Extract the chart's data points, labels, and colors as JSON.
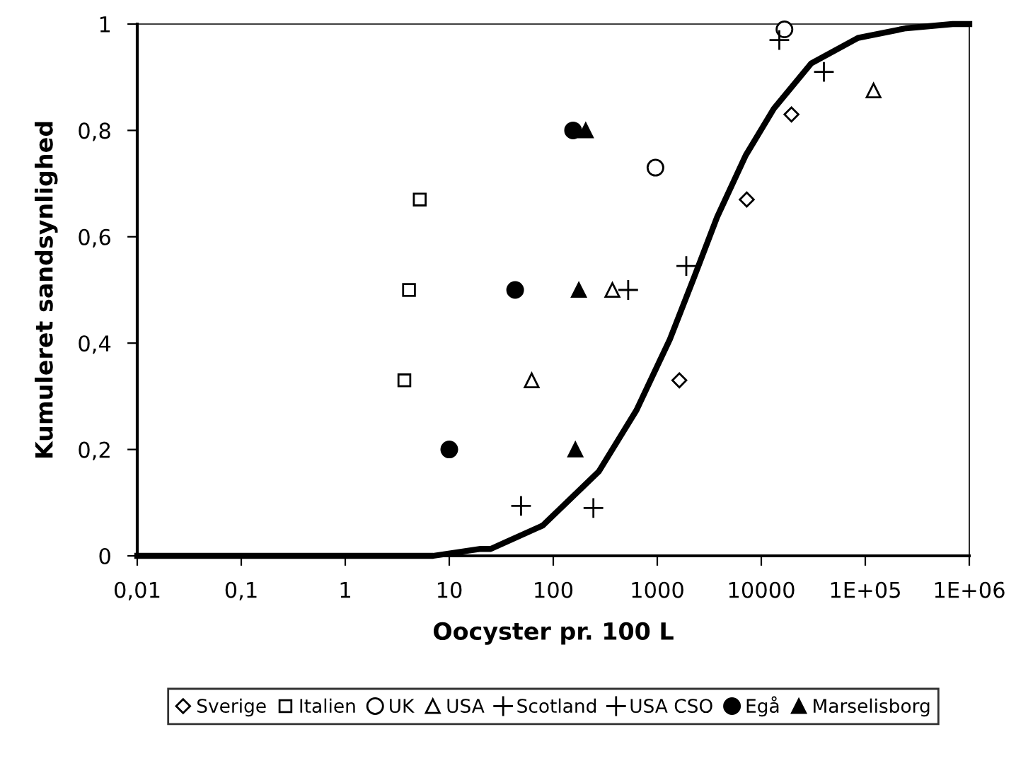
{
  "chart_data": {
    "type": "scatter",
    "xlabel": "Oocyster pr. 100 L",
    "ylabel": "Kumuleret sandsynlighed",
    "log": "x",
    "xlim": [
      0.01,
      1000000
    ],
    "xticks": [
      {
        "value": 0.01,
        "label": "0,01"
      },
      {
        "value": 0.1,
        "label": "0,1"
      },
      1,
      10,
      100,
      1000,
      10000,
      {
        "value": 100000,
        "label": "1E+05"
      },
      {
        "value": 1000000,
        "label": "1E+06"
      }
    ],
    "ylim": [
      0,
      1
    ],
    "yticks": [
      0,
      {
        "value": 0.2,
        "label": "0,2"
      },
      {
        "value": 0.4,
        "label": "0,4"
      },
      {
        "value": 0.6,
        "label": "0,6"
      },
      {
        "value": 0.8,
        "label": "0,8"
      },
      1
    ],
    "grid": false,
    "legend": "bottom",
    "series": [
      {
        "name": "Sverige",
        "color": "#000000",
        "marker": "diamond",
        "x": [
          1630,
          7250,
          19500
        ],
        "values": [
          0.33,
          0.67,
          0.83
        ]
      },
      {
        "name": "Italien",
        "color": "#000000",
        "marker": "square",
        "x": [
          3.7,
          4.1,
          5.2
        ],
        "values": [
          0.33,
          0.5,
          0.67
        ]
      },
      {
        "name": "UK",
        "color": "#000000",
        "marker": "circle",
        "x": [
          960,
          16700
        ],
        "values": [
          0.73,
          0.99
        ]
      },
      {
        "name": "USA",
        "color": "#000000",
        "marker": "triangle",
        "x": [
          62,
          370,
          120000
        ],
        "values": [
          0.33,
          0.5,
          0.875
        ]
      },
      {
        "name": "Scotland",
        "color": "#000000",
        "marker": "cross",
        "x": [
          49,
          1900,
          14900
        ],
        "values": [
          0.094,
          0.545,
          0.97
        ]
      },
      {
        "name": "USA CSO",
        "color": "#000000",
        "marker": "cross",
        "x": [
          243,
          525,
          40000
        ],
        "values": [
          0.09,
          0.5,
          0.91
        ]
      },
      {
        "name": "Egå",
        "color": "#000000",
        "marker": "circle",
        "x": [
          10,
          43,
          155
        ],
        "values": [
          0.2,
          0.5,
          0.8
        ]
      },
      {
        "name": "Marselisborg",
        "color": "#000000",
        "marker": "triangle",
        "x": [
          163,
          176,
          205
        ],
        "values": [
          0.2,
          0.5,
          0.8
        ]
      },
      {
        "type": "line",
        "color": "#000000",
        "marker": "none",
        "line_style": "solid",
        "x": [
          0.01,
          1,
          7,
          20,
          25,
          79,
          275,
          631,
          1320,
          2240,
          3760,
          7080,
          13200,
          30200,
          85100,
          245000,
          692000,
          1000000
        ],
        "values": [
          0,
          0,
          0,
          0.013,
          0.013,
          0.057,
          0.159,
          0.274,
          0.407,
          0.522,
          0.637,
          0.753,
          0.841,
          0.926,
          0.974,
          0.992,
          1.0,
          1.0
        ]
      }
    ]
  }
}
